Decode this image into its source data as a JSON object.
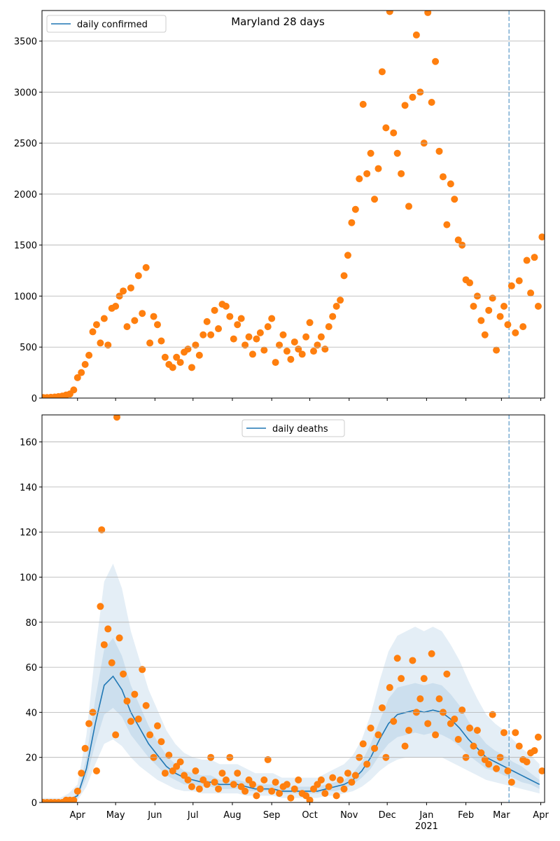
{
  "chart_data": [
    {
      "type": "scatter",
      "title": "Maryland 28 days",
      "legend_label": "daily confirmed",
      "legend_loc": "upper left",
      "line_color": "#1f77b4",
      "xlim": [
        3,
        399
      ],
      "ylim": [
        0,
        3800
      ],
      "yticks": [
        0,
        500,
        1000,
        1500,
        2000,
        2500,
        3000,
        3500
      ],
      "xticks": [
        31,
        61,
        92,
        122,
        153,
        184,
        214,
        245,
        275,
        306,
        337,
        365,
        396
      ],
      "grid": true,
      "vline": 371,
      "points": {
        "color": "#ff7f0e",
        "x": [
          4,
          7,
          10,
          13,
          16,
          19,
          22,
          25,
          28,
          31,
          34,
          37,
          40,
          43,
          46,
          49,
          52,
          55,
          58,
          61,
          64,
          67,
          70,
          73,
          76,
          79,
          82,
          85,
          88,
          91,
          94,
          97,
          100,
          103,
          106,
          109,
          112,
          115,
          118,
          121,
          124,
          127,
          130,
          133,
          136,
          139,
          142,
          145,
          148,
          151,
          154,
          157,
          160,
          163,
          166,
          169,
          172,
          175,
          178,
          181,
          184,
          187,
          190,
          193,
          196,
          199,
          202,
          205,
          208,
          211,
          214,
          217,
          220,
          223,
          226,
          229,
          232,
          235,
          238,
          241,
          244,
          247,
          250,
          253,
          256,
          259,
          262,
          265,
          268,
          271,
          274,
          277,
          280,
          283,
          286,
          289,
          292,
          295,
          298,
          301,
          304,
          307,
          310,
          313,
          316,
          319,
          322,
          325,
          328,
          331,
          334,
          337,
          340,
          343,
          346,
          349,
          352,
          355,
          358,
          361,
          364,
          367,
          370,
          373,
          376,
          379,
          382,
          385,
          388,
          391,
          394,
          397
        ],
        "values": [
          5,
          5,
          8,
          10,
          15,
          20,
          30,
          40,
          80,
          200,
          250,
          330,
          420,
          650,
          720,
          540,
          780,
          520,
          880,
          900,
          1000,
          1050,
          700,
          1080,
          760,
          1200,
          830,
          1280,
          540,
          800,
          720,
          560,
          400,
          330,
          300,
          400,
          350,
          450,
          480,
          300,
          520,
          420,
          620,
          750,
          620,
          860,
          680,
          920,
          900,
          800,
          580,
          720,
          780,
          520,
          600,
          430,
          580,
          640,
          470,
          700,
          780,
          350,
          520,
          620,
          460,
          380,
          550,
          480,
          430,
          600,
          740,
          460,
          520,
          600,
          480,
          700,
          800,
          900,
          960,
          1200,
          1400,
          1720,
          1850,
          2150,
          2880,
          2200,
          2400,
          1950,
          2250,
          3200,
          2650,
          3790,
          2600,
          2400,
          2200,
          2870,
          1880,
          2950,
          3560,
          3000,
          2500,
          3780,
          2900,
          3300,
          2420,
          2170,
          1700,
          2100,
          1950,
          1550,
          1500,
          1160,
          1130,
          900,
          1000,
          760,
          620,
          860,
          980,
          470,
          800,
          900,
          720,
          1100,
          640,
          1150,
          700,
          1350,
          1030,
          1380,
          900,
          1580
        ]
      }
    },
    {
      "type": "scatter",
      "legend_label": "daily deaths",
      "legend_loc": "upper center",
      "line_color": "#1f77b4",
      "xlim": [
        3,
        399
      ],
      "ylim": [
        0,
        172
      ],
      "yticks": [
        0,
        20,
        40,
        60,
        80,
        100,
        120,
        140,
        160
      ],
      "xticks": [
        {
          "value": 31,
          "label": "Apr"
        },
        {
          "value": 61,
          "label": "May"
        },
        {
          "value": 92,
          "label": "Jun"
        },
        {
          "value": 122,
          "label": "Jul"
        },
        {
          "value": 153,
          "label": "Aug"
        },
        {
          "value": 184,
          "label": "Sep"
        },
        {
          "value": 214,
          "label": "Oct"
        },
        {
          "value": 245,
          "label": "Nov"
        },
        {
          "value": 275,
          "label": "Dec"
        },
        {
          "value": 306,
          "label": "Jan\n2021"
        },
        {
          "value": 337,
          "label": "Feb"
        },
        {
          "value": 365,
          "label": "Mar"
        },
        {
          "value": 396,
          "label": "Apr"
        }
      ],
      "grid": true,
      "vline": 371,
      "bands": [
        {
          "color": "#1f77b4",
          "lower": [
            0,
            0,
            0,
            0,
            1,
            7,
            17,
            26,
            28,
            25,
            20,
            16,
            13,
            10,
            8,
            6,
            5,
            5,
            4,
            4,
            4,
            4,
            4,
            3,
            3,
            3,
            3,
            2,
            2,
            2,
            2,
            2,
            3,
            3,
            4,
            5,
            7,
            10,
            14,
            17,
            19,
            20,
            20,
            20,
            20,
            20,
            18,
            16,
            14,
            12,
            10,
            9,
            8,
            7,
            6,
            5,
            4
          ],
          "upper": [
            2,
            2,
            2,
            4,
            8,
            30,
            67,
            98,
            106,
            95,
            76,
            63,
            50,
            41,
            32,
            26,
            22,
            20,
            19,
            19,
            17,
            17,
            17,
            15,
            13,
            13,
            13,
            11,
            11,
            11,
            11,
            11,
            13,
            15,
            17,
            21,
            28,
            39,
            54,
            67,
            74,
            76,
            78,
            76,
            78,
            76,
            70,
            63,
            54,
            46,
            39,
            35,
            32,
            28,
            24,
            21,
            17
          ]
        },
        {
          "color": "#1f77b4",
          "lower": [
            0,
            0,
            0,
            1,
            2,
            11,
            26,
            39,
            42,
            38,
            30,
            25,
            20,
            16,
            12,
            10,
            8,
            8,
            7,
            7,
            6,
            6,
            6,
            5,
            5,
            5,
            5,
            4,
            4,
            4,
            4,
            4,
            5,
            5,
            6,
            8,
            11,
            15,
            21,
            26,
            29,
            30,
            31,
            30,
            31,
            30,
            28,
            25,
            21,
            18,
            15,
            14,
            12,
            11,
            9,
            8,
            6
          ],
          "upper": [
            0,
            0,
            0,
            1,
            4,
            20,
            46,
            68,
            73,
            65,
            52,
            43,
            34,
            27,
            21,
            17,
            14,
            13,
            12,
            12,
            10,
            10,
            10,
            9,
            8,
            8,
            8,
            7,
            7,
            7,
            7,
            7,
            8,
            9,
            10,
            13,
            18,
            26,
            36,
            46,
            51,
            52,
            53,
            52,
            53,
            52,
            48,
            43,
            36,
            31,
            26,
            23,
            21,
            18,
            16,
            13,
            10
          ]
        }
      ],
      "line": {
        "x": [
          3,
          10,
          17,
          24,
          31,
          38,
          45,
          52,
          59,
          66,
          73,
          80,
          87,
          94,
          101,
          108,
          115,
          122,
          129,
          136,
          143,
          150,
          157,
          164,
          171,
          178,
          185,
          192,
          199,
          206,
          213,
          220,
          227,
          234,
          241,
          248,
          255,
          262,
          269,
          276,
          283,
          290,
          297,
          304,
          311,
          318,
          325,
          332,
          339,
          346,
          353,
          360,
          367,
          374,
          381,
          388,
          395
        ],
        "values": [
          0,
          0,
          0,
          1,
          3,
          15,
          35,
          52,
          56,
          50,
          40,
          33,
          26,
          21,
          16,
          13,
          11,
          10,
          9,
          9,
          8,
          8,
          8,
          7,
          6,
          6,
          6,
          5,
          5,
          5,
          5,
          5,
          6,
          7,
          8,
          10,
          14,
          20,
          28,
          35,
          39,
          40,
          41,
          40,
          41,
          40,
          37,
          33,
          28,
          24,
          20,
          18,
          16,
          14,
          12,
          10,
          8
        ]
      },
      "points": {
        "color": "#ff7f0e",
        "x": [
          4,
          7,
          10,
          13,
          16,
          19,
          22,
          25,
          28,
          31,
          34,
          37,
          40,
          43,
          46,
          49,
          50,
          52,
          55,
          58,
          61,
          62,
          64,
          67,
          70,
          73,
          76,
          79,
          82,
          85,
          88,
          91,
          94,
          97,
          100,
          103,
          106,
          109,
          112,
          115,
          118,
          121,
          124,
          127,
          130,
          133,
          136,
          139,
          142,
          145,
          148,
          151,
          154,
          157,
          160,
          163,
          166,
          169,
          172,
          175,
          178,
          181,
          184,
          187,
          190,
          193,
          196,
          199,
          202,
          205,
          208,
          211,
          214,
          217,
          220,
          223,
          226,
          229,
          232,
          235,
          238,
          241,
          244,
          247,
          250,
          253,
          256,
          259,
          262,
          265,
          268,
          271,
          274,
          277,
          280,
          283,
          286,
          289,
          292,
          295,
          298,
          301,
          304,
          307,
          310,
          313,
          316,
          319,
          322,
          325,
          328,
          331,
          334,
          337,
          340,
          343,
          346,
          349,
          352,
          355,
          358,
          361,
          364,
          367,
          370,
          373,
          376,
          379,
          382,
          385,
          388,
          391,
          394,
          397
        ],
        "values": [
          0,
          0,
          0,
          0,
          0,
          0,
          1,
          1,
          1,
          5,
          13,
          24,
          35,
          40,
          14,
          87,
          121,
          70,
          77,
          62,
          30,
          171,
          73,
          57,
          45,
          36,
          48,
          37,
          59,
          43,
          30,
          20,
          34,
          27,
          13,
          21,
          14,
          16,
          18,
          12,
          10,
          7,
          14,
          6,
          10,
          8,
          20,
          9,
          6,
          13,
          10,
          20,
          8,
          13,
          7,
          5,
          10,
          8,
          3,
          6,
          10,
          19,
          5,
          9,
          4,
          7,
          8,
          2,
          6,
          10,
          4,
          3,
          1,
          6,
          8,
          10,
          4,
          7,
          11,
          3,
          10,
          6,
          13,
          9,
          12,
          20,
          26,
          17,
          33,
          24,
          30,
          42,
          20,
          51,
          36,
          64,
          55,
          25,
          32,
          63,
          40,
          46,
          55,
          35,
          66,
          30,
          46,
          40,
          57,
          35,
          37,
          28,
          41,
          20,
          33,
          25,
          32,
          22,
          19,
          17,
          39,
          15,
          20,
          31,
          14,
          9,
          31,
          25,
          19,
          18,
          22,
          23,
          29,
          14
        ]
      }
    }
  ]
}
